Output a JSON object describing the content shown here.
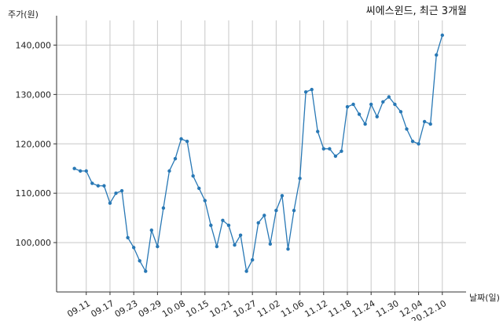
{
  "chart_data": {
    "type": "line",
    "title": "씨에스윈드, 최근 3개월",
    "xlabel": "날짜(일)",
    "ylabel": "주가(원)",
    "ylim": [
      90000,
      145000
    ],
    "yticks": [
      100000,
      110000,
      120000,
      130000,
      140000
    ],
    "ytick_labels": [
      "100,000",
      "110,000",
      "120,000",
      "130,000",
      "140,000"
    ],
    "xtick_labels": [
      "09.11",
      "09.17",
      "09.23",
      "09.29",
      "10.08",
      "10.15",
      "10.21",
      "10.27",
      "11.02",
      "11.06",
      "11.12",
      "11.18",
      "11.24",
      "11.30",
      "12.04",
      "20.12.10"
    ],
    "xtick_positions": [
      2,
      6,
      10,
      14,
      18,
      22,
      26,
      30,
      34,
      38,
      42,
      46,
      50,
      54,
      58,
      62
    ],
    "xlim": [
      -3,
      66
    ],
    "grid": true,
    "color": "#2878b5",
    "series": [
      {
        "values": [
          115000,
          114500,
          114500,
          112000,
          111500,
          111500,
          108000,
          110000,
          110500,
          101000,
          99000,
          96300,
          94200,
          102500,
          99200,
          107000,
          114500,
          117000,
          121000,
          120500,
          113500,
          111000,
          108500,
          103500,
          99200,
          104500,
          103500,
          99500,
          101500,
          94200,
          96500,
          104000,
          105500,
          99700,
          106500,
          109500,
          98700,
          106500,
          113000,
          130500,
          131000,
          122500,
          119000,
          119000,
          117500,
          118500,
          127500,
          128000,
          126000,
          124000,
          128000,
          125500,
          128500,
          129500,
          128000,
          126500,
          123000,
          120500,
          120000,
          124500,
          124000,
          138000,
          142000
        ]
      }
    ]
  }
}
